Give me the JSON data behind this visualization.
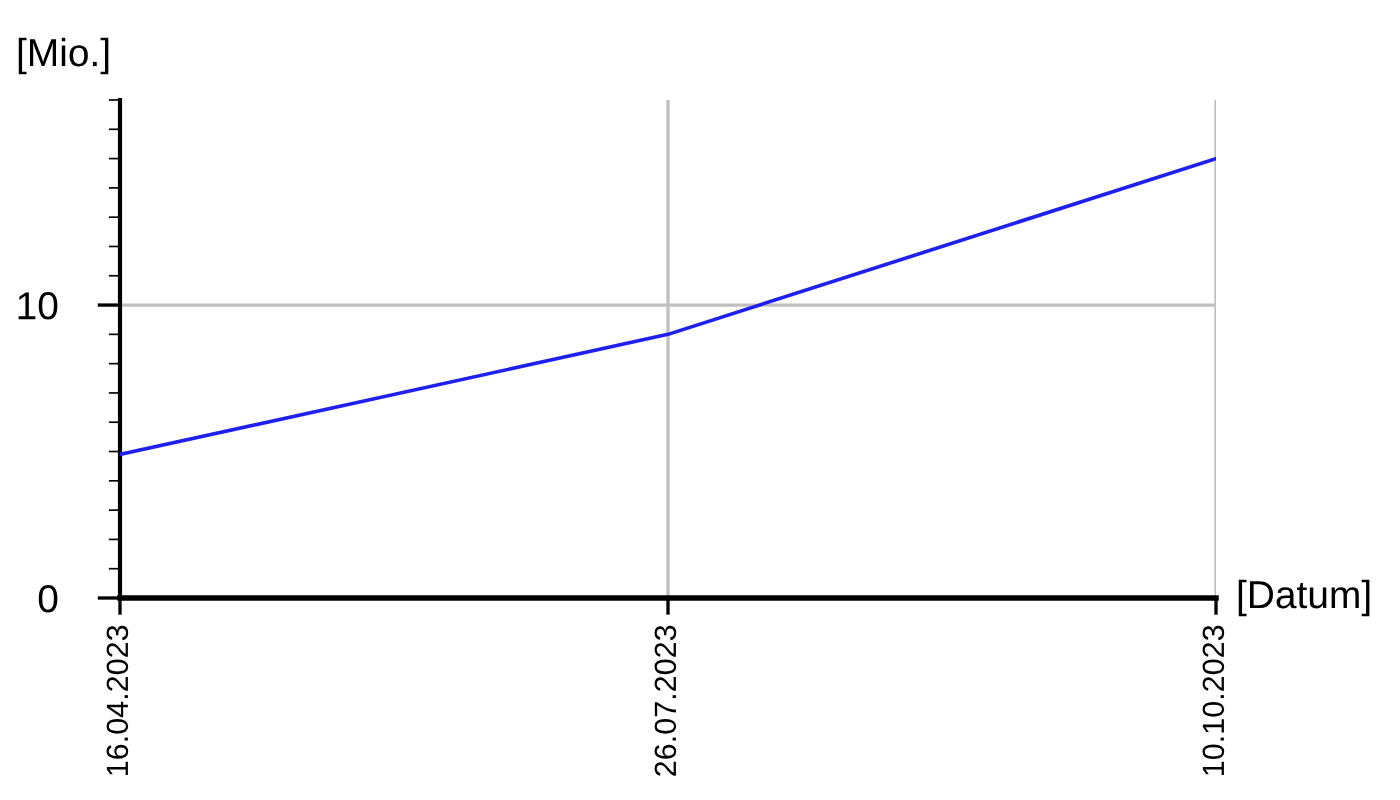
{
  "chart_data": {
    "type": "line",
    "xlabel": "[Datum]",
    "ylabel": "[Mio.]",
    "categories": [
      "16.04.2023",
      "26.07.2023",
      "10.10.2023"
    ],
    "series": [
      {
        "color": "#1f1ff0",
        "values": [
          4.9,
          9,
          15
        ]
      }
    ],
    "ylim": [
      0,
      17
    ],
    "yticks": [
      0,
      10
    ],
    "grid": true,
    "marker": "none",
    "line_style": "solid"
  }
}
